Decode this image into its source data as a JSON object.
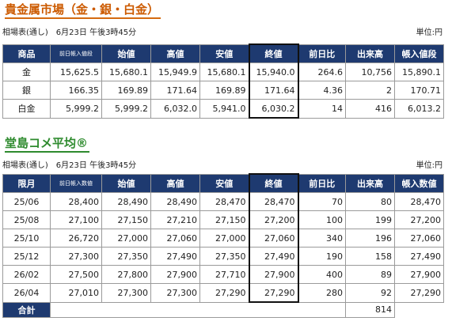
{
  "precious": {
    "title": "貴金属市場（金・銀・白金）",
    "meta": "相場表(通し)　6月23日 午後3時45分",
    "unit": "単位:円",
    "headers": [
      "商品",
      "前日帳入値段",
      "始値",
      "高値",
      "安値",
      "終値",
      "前日比",
      "出来高",
      "帳入値段"
    ],
    "rows": [
      [
        "金",
        "15,625.5",
        "15,680.1",
        "15,949.9",
        "15,680.1",
        "15,940.0",
        "264.6",
        "10,756",
        "15,890.1"
      ],
      [
        "銀",
        "166.35",
        "169.89",
        "171.64",
        "169.89",
        "171.64",
        "4.36",
        "2",
        "170.71"
      ],
      [
        "白金",
        "5,999.2",
        "5,999.2",
        "6,032.0",
        "5,941.0",
        "6,030.2",
        "14",
        "416",
        "6,013.2"
      ]
    ]
  },
  "rice": {
    "title": "堂島コメ平均®",
    "meta": "相場表(通し)　6月23日 午後3時45分",
    "unit": "単位:円",
    "headers": [
      "限月",
      "前日帳入数値",
      "始値",
      "高値",
      "安値",
      "終値",
      "前日比",
      "出来高",
      "帳入数値"
    ],
    "rows": [
      [
        "25/06",
        "28,400",
        "28,490",
        "28,490",
        "28,470",
        "28,470",
        "70",
        "80",
        "28,470"
      ],
      [
        "25/08",
        "27,100",
        "27,150",
        "27,210",
        "27,150",
        "27,200",
        "100",
        "199",
        "27,200"
      ],
      [
        "25/10",
        "26,720",
        "27,000",
        "27,060",
        "27,000",
        "27,060",
        "340",
        "196",
        "27,060"
      ],
      [
        "25/12",
        "27,300",
        "27,350",
        "27,490",
        "27,350",
        "27,490",
        "190",
        "158",
        "27,490"
      ],
      [
        "26/02",
        "27,500",
        "27,800",
        "27,900",
        "27,710",
        "27,900",
        "400",
        "89",
        "27,900"
      ],
      [
        "26/04",
        "27,010",
        "27,300",
        "27,300",
        "27,290",
        "27,290",
        "280",
        "92",
        "27,290"
      ]
    ],
    "total_label": "合計",
    "total_value": "814"
  },
  "colors": {
    "header_bg": "#1e3a70",
    "title1": "#cc5a00",
    "title2": "#2e8b2e"
  }
}
